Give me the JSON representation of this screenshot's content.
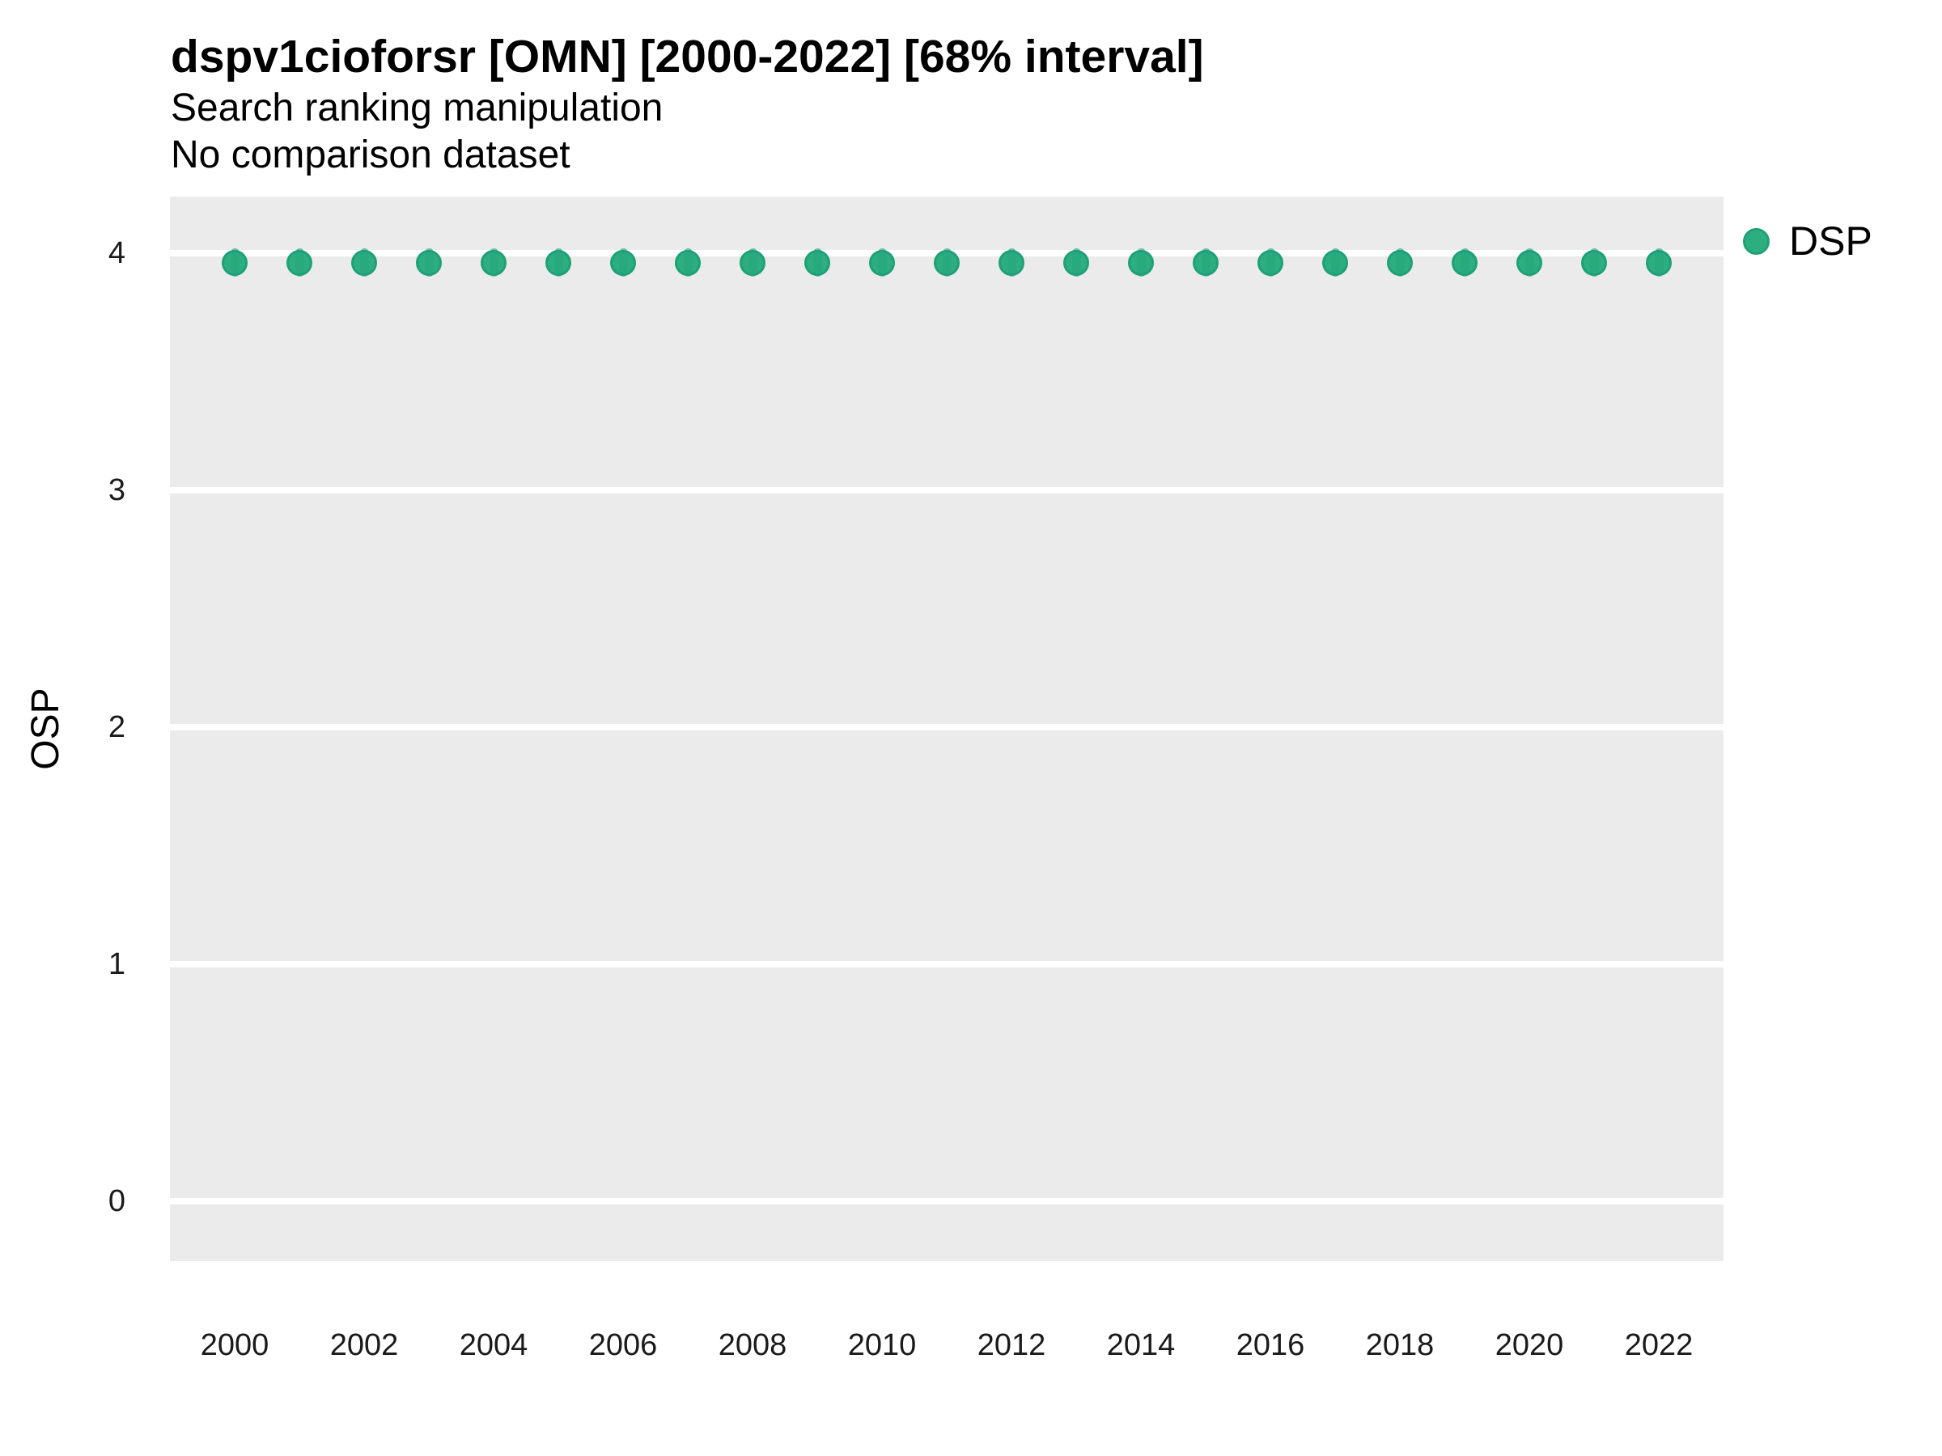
{
  "header": {
    "title": "dspv1cioforsr [OMN] [2000-2022] [68% interval]",
    "subtitle": "Search ranking manipulation",
    "note": "No comparison dataset"
  },
  "legend": {
    "position": "right",
    "items": [
      {
        "label": "DSP",
        "swatch": "circle"
      }
    ]
  },
  "style": {
    "panel_bg": "#EBEBEB",
    "grid_color": "#FFFFFF",
    "point_fill": "#2DAE81",
    "point_stroke": "#1FA077",
    "interval_color": "#1FA077",
    "interval_opacity": 0.45,
    "axis_text_color": "#1a1a1a",
    "title_color": "#000000"
  },
  "chart_data": {
    "type": "scatter",
    "title": "dspv1cioforsr [OMN] [2000-2022] [68% interval]",
    "subtitle": "Search ranking manipulation",
    "note": "No comparison dataset",
    "xlabel": "",
    "ylabel": "OSP",
    "xlim": [
      1999,
      2023
    ],
    "ylim": [
      -0.25,
      4.25
    ],
    "x_ticks": [
      2000,
      2002,
      2004,
      2006,
      2008,
      2010,
      2012,
      2014,
      2016,
      2018,
      2020,
      2022
    ],
    "y_ticks": [
      0,
      1,
      2,
      3,
      4
    ],
    "grid": "major-y white lines on gray panel, no minor grid, no axis lines",
    "legend_position": "right",
    "series": [
      {
        "name": "DSP",
        "marker": "filled-circle-with-darker-outline",
        "interval": "68%",
        "x": [
          2000,
          2001,
          2002,
          2003,
          2004,
          2005,
          2006,
          2007,
          2008,
          2009,
          2010,
          2011,
          2012,
          2013,
          2014,
          2015,
          2016,
          2017,
          2018,
          2019,
          2020,
          2021,
          2022
        ],
        "y": [
          3.96,
          3.96,
          3.96,
          3.96,
          3.96,
          3.96,
          3.96,
          3.96,
          3.96,
          3.96,
          3.96,
          3.96,
          3.96,
          3.96,
          3.96,
          3.96,
          3.96,
          3.96,
          3.96,
          3.96,
          3.96,
          3.96,
          3.96
        ],
        "interval_lower": [
          3.9,
          3.9,
          3.9,
          3.9,
          3.9,
          3.9,
          3.9,
          3.9,
          3.9,
          3.9,
          3.9,
          3.9,
          3.9,
          3.9,
          3.9,
          3.9,
          3.9,
          3.9,
          3.9,
          3.9,
          3.9,
          3.9,
          3.9
        ],
        "interval_upper": [
          4.02,
          4.02,
          4.02,
          4.02,
          4.02,
          4.02,
          4.02,
          4.02,
          4.02,
          4.02,
          4.02,
          4.02,
          4.02,
          4.02,
          4.02,
          4.02,
          4.02,
          4.02,
          4.02,
          4.02,
          4.02,
          4.02,
          4.02
        ]
      }
    ]
  }
}
